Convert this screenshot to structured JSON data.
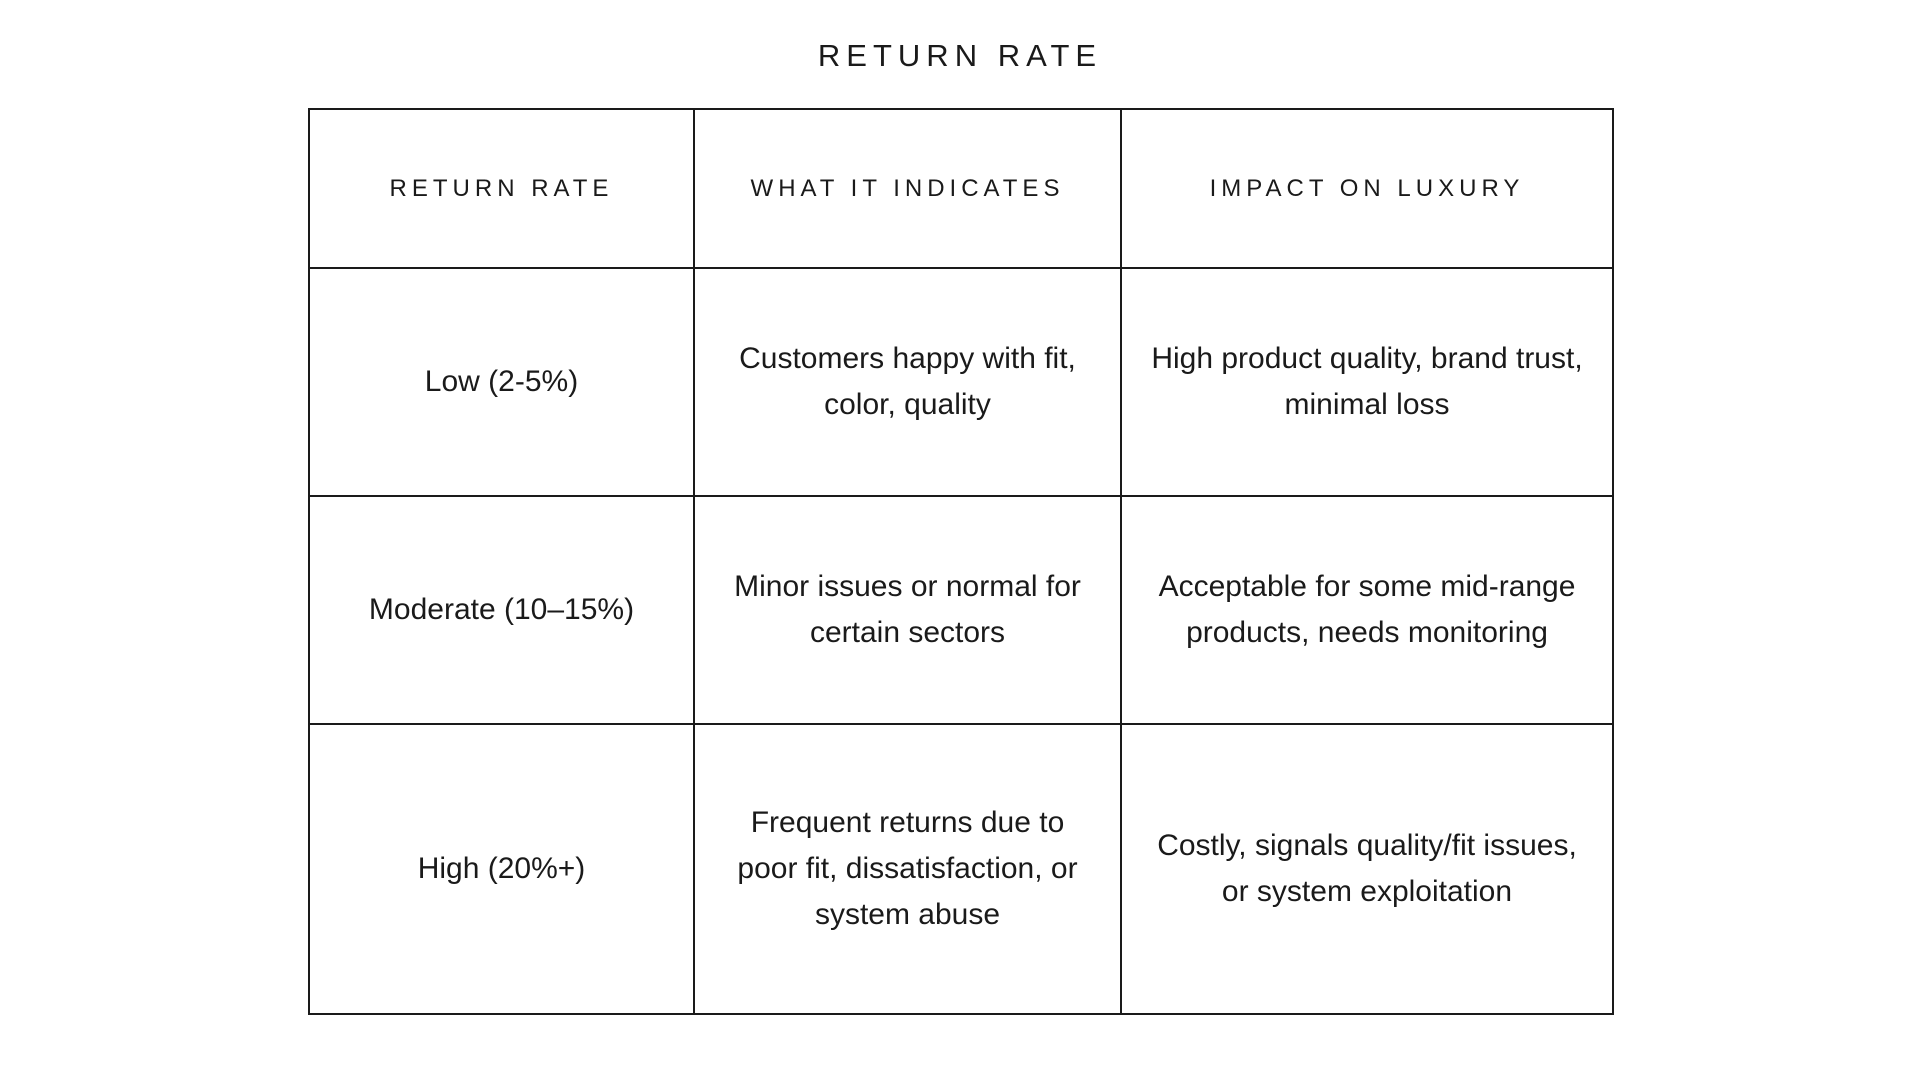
{
  "title": "RETURN RATE",
  "table": {
    "headers": [
      "RETURN RATE",
      "WHAT IT INDICATES",
      "IMPACT ON LUXURY"
    ],
    "rows": [
      [
        "Low (2-5%)",
        "Customers happy with fit, color, quality",
        "High product quality, brand trust, minimal loss"
      ],
      [
        "Moderate (10–15%)",
        "Minor issues or normal for certain sectors",
        "Acceptable for some mid-range products, needs monitoring"
      ],
      [
        "High (20%+)",
        "Frequent returns due to poor fit, dissatisfaction, or system abuse",
        "Costly, signals quality/fit issues, or system exploitation"
      ]
    ]
  }
}
